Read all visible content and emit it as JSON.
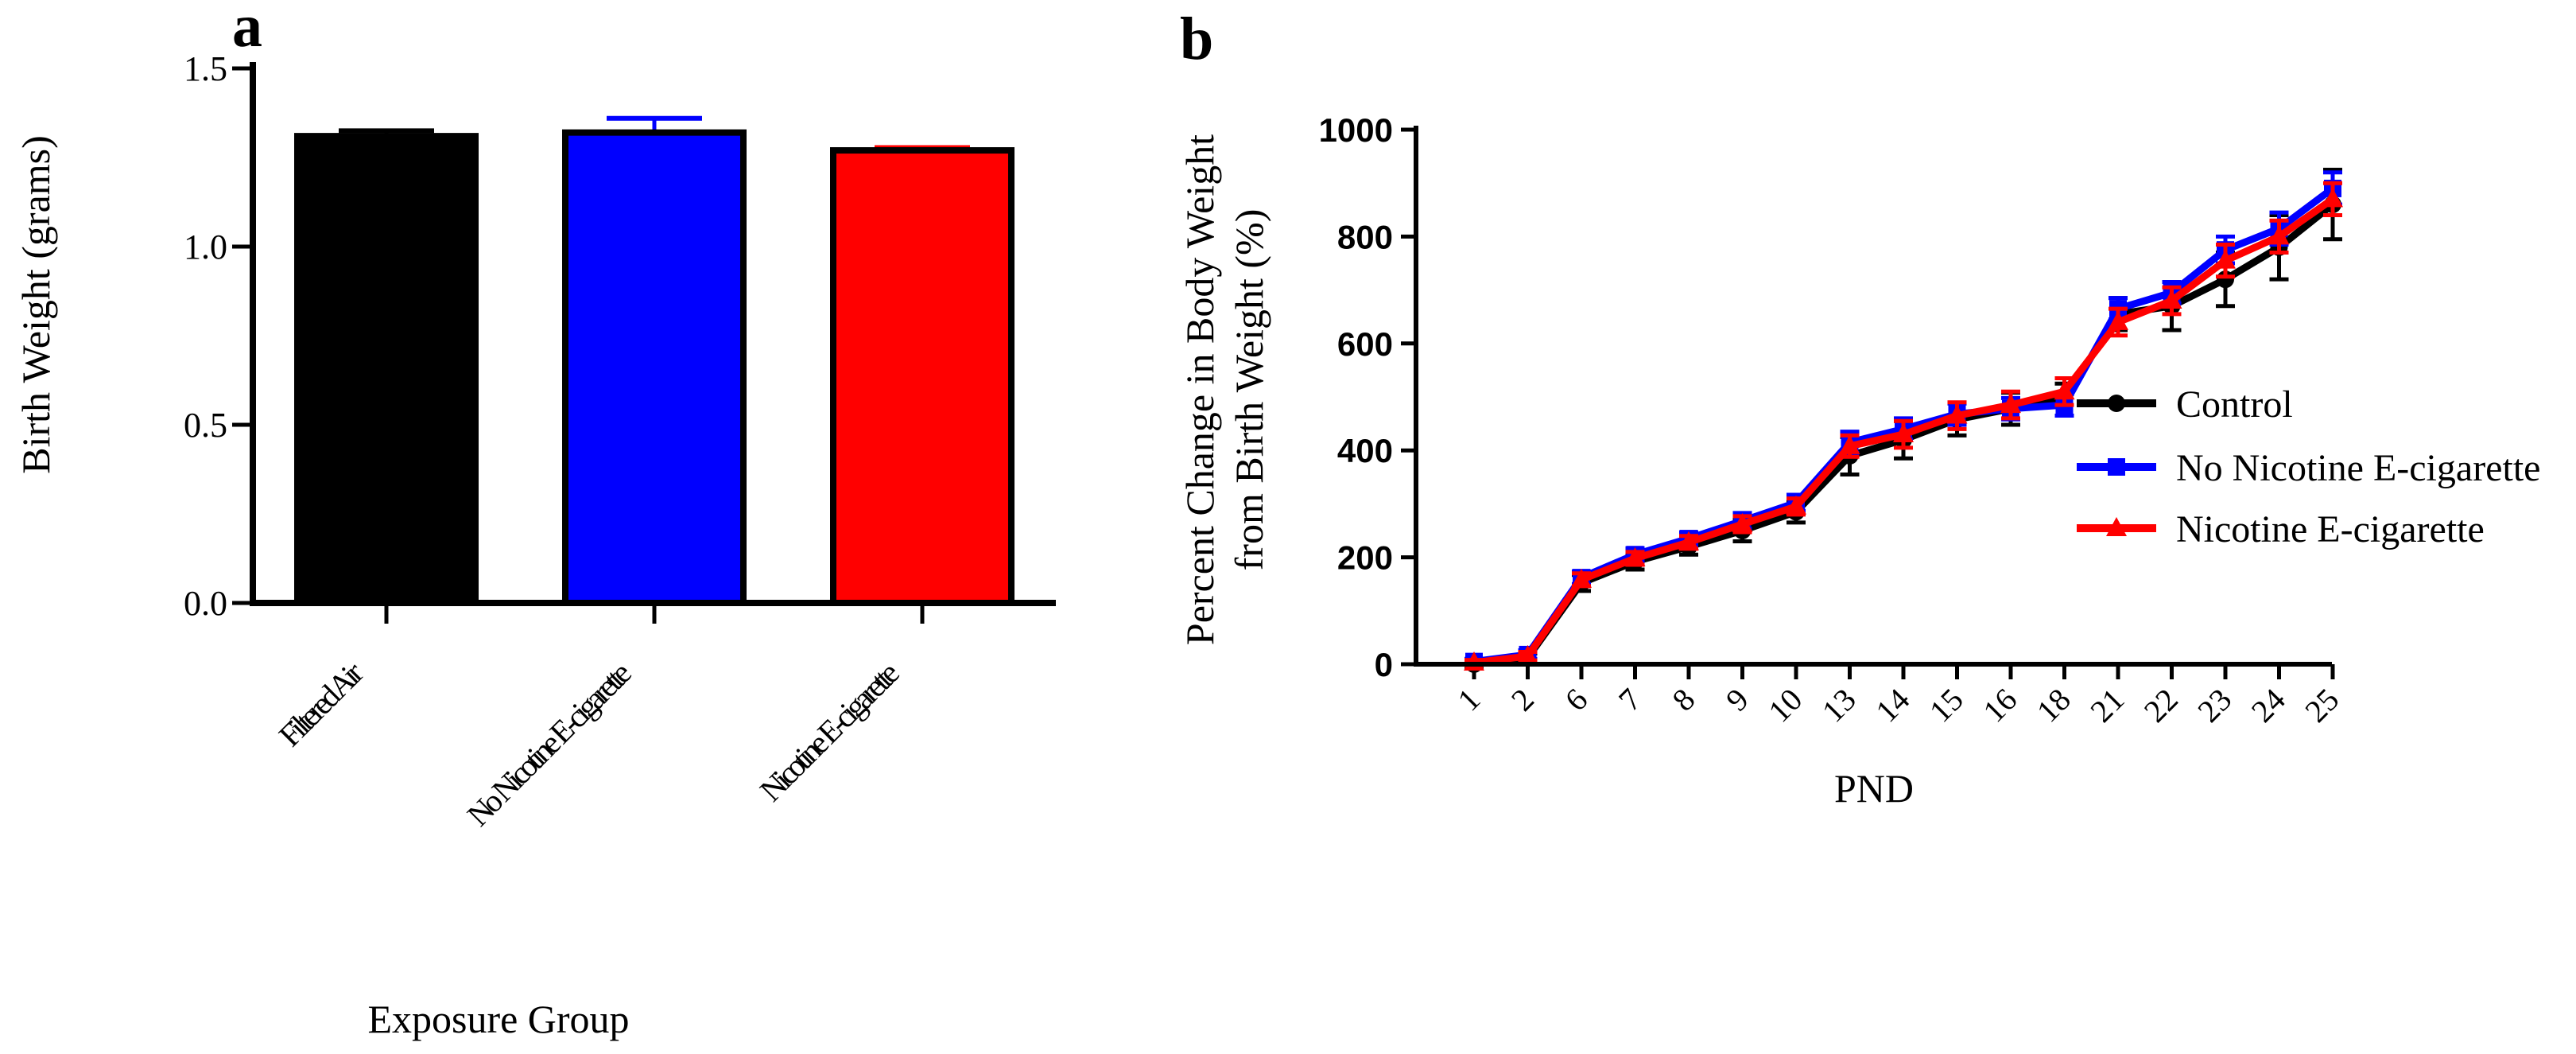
{
  "chart_data": [
    {
      "panel": "a",
      "type": "bar",
      "title": "",
      "xlabel": "Exposure Group",
      "ylabel": "Birth Weight (grams)",
      "ylim": [
        0,
        1.5
      ],
      "yticks": [
        "0.0",
        "0.5",
        "1.0",
        "1.5"
      ],
      "categories": [
        "Filtered Air",
        "No Nicotine E-cigarette",
        "Nicotine E-cigarette"
      ],
      "values": [
        1.31,
        1.32,
        1.27
      ],
      "errors": [
        0.015,
        0.04,
        0.008
      ],
      "colors": [
        "#000000",
        "#0000ff",
        "#ff0000"
      ]
    },
    {
      "panel": "b",
      "type": "line",
      "title": "",
      "xlabel": "PND",
      "ylabel": "Percent Change in Body Weight from Birth Weight (%)",
      "ylabel_lines": [
        "Percent Change in Body Weight",
        "from Birth Weight (%)"
      ],
      "ylim": [
        0,
        1000
      ],
      "yticks": [
        "0",
        "200",
        "400",
        "600",
        "800",
        "1000"
      ],
      "x": [
        "1",
        "2",
        "6",
        "7",
        "8",
        "9",
        "10",
        "13",
        "14",
        "15",
        "16",
        "18",
        "21",
        "22",
        "23",
        "24",
        "25"
      ],
      "legend_position": "right",
      "series": [
        {
          "name": "Control",
          "color": "#000000",
          "marker": "circle",
          "values": [
            0,
            12,
            152,
            192,
            220,
            250,
            285,
            390,
            420,
            458,
            478,
            495,
            655,
            670,
            720,
            780,
            860
          ],
          "errors": [
            5,
            8,
            15,
            15,
            15,
            20,
            20,
            35,
            35,
            30,
            30,
            30,
            30,
            45,
            50,
            60,
            65
          ]
        },
        {
          "name": "No Nicotine E-cigarette",
          "color": "#0000ff",
          "marker": "square",
          "values": [
            5,
            18,
            162,
            205,
            235,
            268,
            302,
            415,
            440,
            468,
            478,
            485,
            665,
            695,
            775,
            815,
            890
          ],
          "errors": [
            5,
            8,
            12,
            12,
            12,
            15,
            15,
            20,
            20,
            20,
            20,
            20,
            20,
            20,
            25,
            30,
            30
          ]
        },
        {
          "name": "Nicotine E-cigarette",
          "color": "#ff0000",
          "marker": "triangle",
          "values": [
            3,
            15,
            158,
            198,
            228,
            262,
            295,
            408,
            430,
            465,
            485,
            510,
            640,
            680,
            755,
            800,
            870
          ],
          "errors": [
            5,
            8,
            12,
            12,
            12,
            15,
            15,
            20,
            25,
            25,
            25,
            25,
            25,
            25,
            30,
            30,
            30
          ]
        }
      ]
    }
  ]
}
